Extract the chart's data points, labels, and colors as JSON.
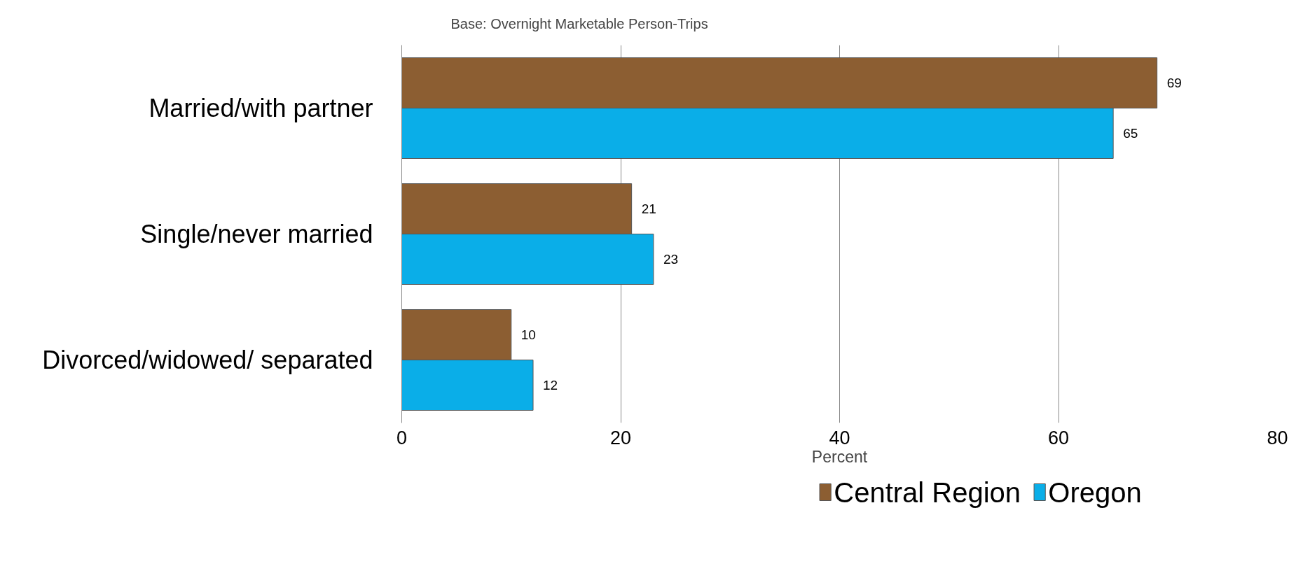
{
  "chart_data": {
    "type": "bar",
    "orientation": "horizontal",
    "title": "Base: Overnight Marketable Person-Trips",
    "xlabel": "Percent",
    "categories": [
      "Married/with partner",
      "Single/never married",
      "Divorced/widowed/ separated"
    ],
    "series": [
      {
        "name": "Central Region",
        "color": "#8c5e32",
        "values": [
          69,
          21,
          10
        ]
      },
      {
        "name": "Oregon",
        "color": "#0aaee8",
        "values": [
          65,
          23,
          12
        ]
      }
    ],
    "xlim": [
      0,
      80
    ],
    "xticks": [
      0,
      20,
      40,
      60,
      80
    ],
    "grid": "x",
    "legend": "bottom",
    "data_labels": true
  }
}
